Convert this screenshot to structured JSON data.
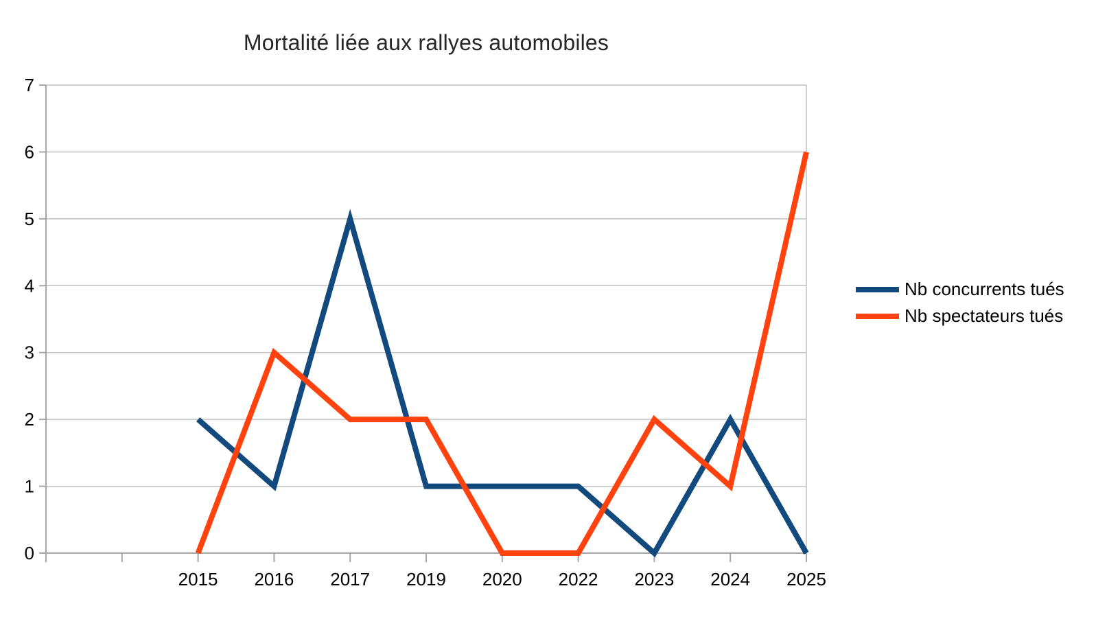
{
  "chart_data": {
    "type": "line",
    "title": "Mortalité liée aux rallyes automobiles",
    "categories": [
      "2015",
      "2016",
      "2017",
      "2019",
      "2020",
      "2022",
      "2023",
      "2024",
      "2025"
    ],
    "series": [
      {
        "name": "Nb concurrents tués",
        "color": "#134a7d",
        "values": [
          2,
          1,
          5,
          1,
          1,
          1,
          0,
          2,
          0
        ]
      },
      {
        "name": "Nb spectateurs tués",
        "color": "#ff420e",
        "values": [
          0,
          3,
          2,
          2,
          0,
          0,
          2,
          1,
          6
        ]
      }
    ],
    "ylim": [
      0,
      7
    ],
    "yticks": [
      0,
      1,
      2,
      3,
      4,
      5,
      6,
      7
    ],
    "grid": "horizontal",
    "legend_position": "right",
    "leading_empty_slots": 2,
    "line_width": 8,
    "gridline_color": "#c0c0c0",
    "axis_color": "#a6a6a6",
    "label_color": "#000000",
    "title_color": "#262626"
  }
}
